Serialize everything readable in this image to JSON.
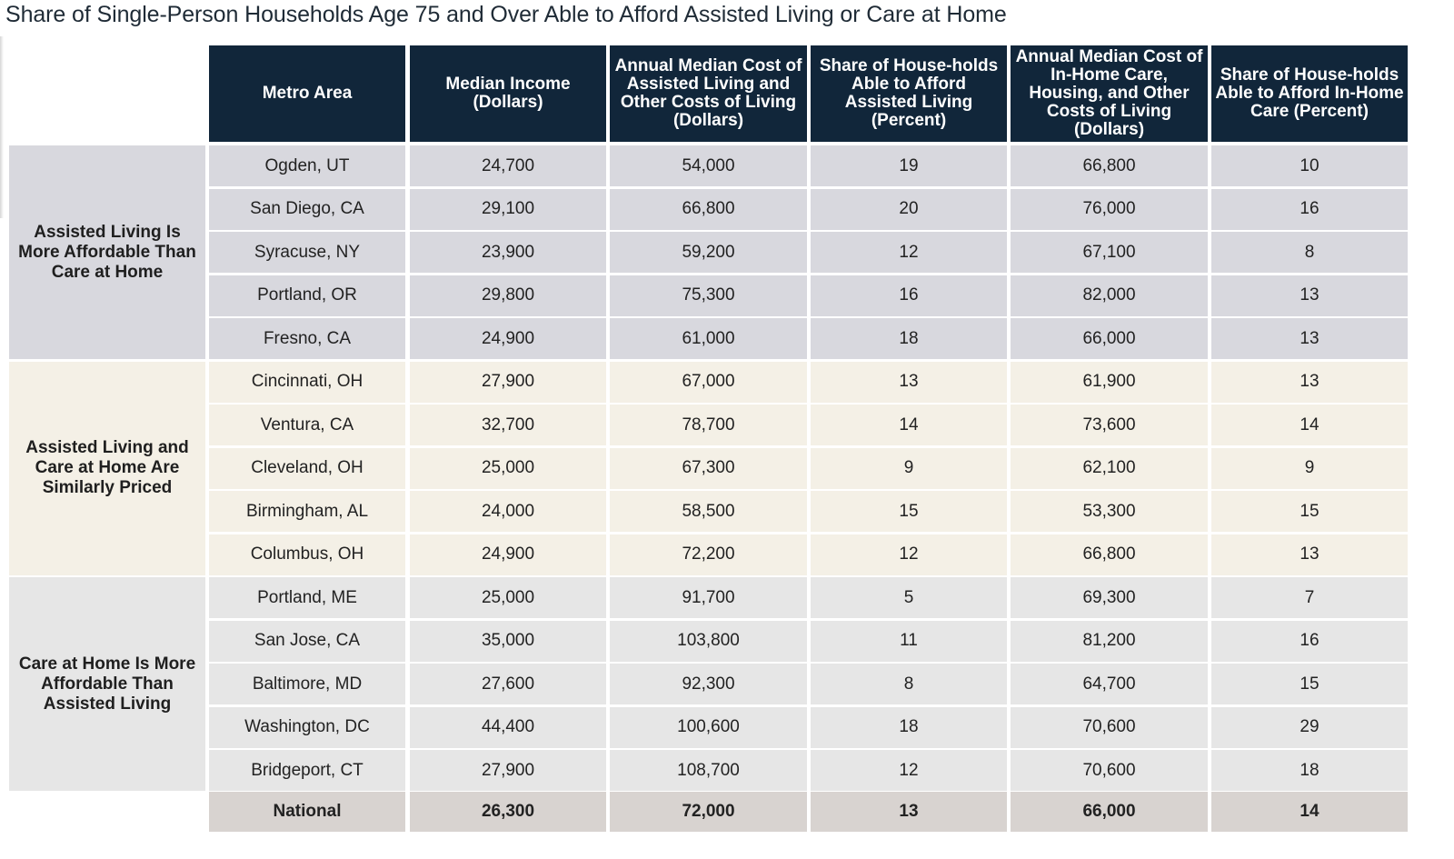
{
  "title": "Share of Single-Person Households Age 75 and Over Able to Afford Assisted Living or Care at Home",
  "chart_data": {
    "type": "table",
    "columns": [
      "Metro Area",
      "Median Income (Dollars)",
      "Annual Median Cost of Assisted Living and Other Costs of Living (Dollars)",
      "Share of House-holds Able to Afford Assisted Living (Percent)",
      "Annual Median Cost of In-Home Care, Housing, and Other Costs of Living (Dollars)",
      "Share of House-holds Able to Afford In-Home Care (Percent)"
    ],
    "groups": [
      {
        "label": "Assisted Living Is More Affordable Than Care at Home",
        "rows": [
          [
            "Ogden, UT",
            "24,700",
            "54,000",
            "19",
            "66,800",
            "10"
          ],
          [
            "San Diego, CA",
            "29,100",
            "66,800",
            "20",
            "76,000",
            "16"
          ],
          [
            "Syracuse, NY",
            "23,900",
            "59,200",
            "12",
            "67,100",
            "8"
          ],
          [
            "Portland, OR",
            "29,800",
            "75,300",
            "16",
            "82,000",
            "13"
          ],
          [
            "Fresno, CA",
            "24,900",
            "61,000",
            "18",
            "66,000",
            "13"
          ]
        ]
      },
      {
        "label": "Assisted Living and Care at Home Are Similarly Priced",
        "rows": [
          [
            "Cincinnati, OH",
            "27,900",
            "67,000",
            "13",
            "61,900",
            "13"
          ],
          [
            "Ventura, CA",
            "32,700",
            "78,700",
            "14",
            "73,600",
            "14"
          ],
          [
            "Cleveland, OH",
            "25,000",
            "67,300",
            "9",
            "62,100",
            "9"
          ],
          [
            "Birmingham, AL",
            "24,000",
            "58,500",
            "15",
            "53,300",
            "15"
          ],
          [
            "Columbus, OH",
            "24,900",
            "72,200",
            "12",
            "66,800",
            "13"
          ]
        ]
      },
      {
        "label": "Care at Home Is More Affordable Than Assisted Living",
        "rows": [
          [
            "Portland, ME",
            "25,000",
            "91,700",
            "5",
            "69,300",
            "7"
          ],
          [
            "San Jose, CA",
            "35,000",
            "103,800",
            "11",
            "81,200",
            "16"
          ],
          [
            "Baltimore, MD",
            "27,600",
            "92,300",
            "8",
            "64,700",
            "15"
          ],
          [
            "Washington, DC",
            "44,400",
            "100,600",
            "18",
            "70,600",
            "29"
          ],
          [
            "Bridgeport, CT",
            "27,900",
            "108,700",
            "12",
            "70,600",
            "18"
          ]
        ]
      }
    ],
    "national": [
      "National",
      "26,300",
      "72,000",
      "13",
      "66,000",
      "14"
    ],
    "colors": {
      "header_bg": "#11263a",
      "header_text": "#ffffff",
      "group_1_bg": "#d8d8de",
      "group_2_bg": "#f4f0e6",
      "group_3_bg": "#e6e6e6",
      "national_bg": "#d8d3d0"
    }
  }
}
